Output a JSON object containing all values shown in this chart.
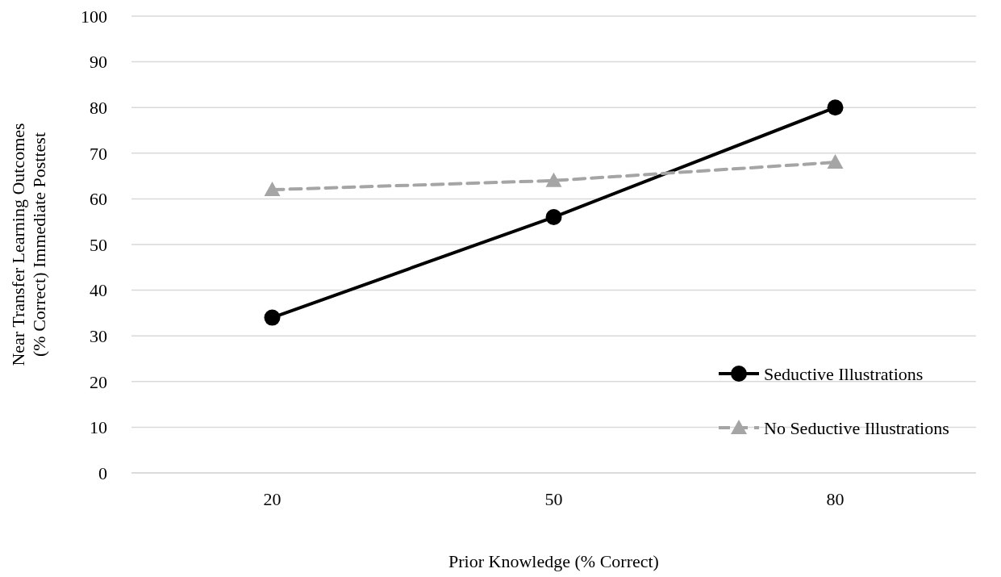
{
  "chart_data": {
    "type": "line",
    "xlabel": "Prior Knowledge (% Correct)",
    "ylabel": "Near Transfer Learning Outcomes (% Correct) Immediate Posttest",
    "categories": [
      "20",
      "50",
      "80"
    ],
    "series": [
      {
        "name": "Seductive Illustrations",
        "color": "#000000",
        "values": [
          34,
          56,
          80
        ],
        "marker": "circle",
        "line_style": "solid"
      },
      {
        "name": "No Seductive Illustrations",
        "color": "#a5a5a5",
        "values": [
          62,
          64,
          68
        ],
        "marker": "triangle",
        "line_style": "dashed"
      }
    ],
    "ylim": [
      0,
      100
    ],
    "yticks": [
      0,
      10,
      20,
      30,
      40,
      50,
      60,
      70,
      80,
      90,
      100
    ],
    "grid": "y",
    "legend": "bottom right"
  }
}
